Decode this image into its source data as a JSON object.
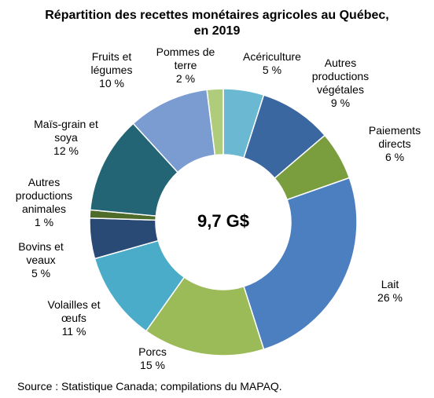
{
  "chart_data": {
    "type": "pie",
    "title_lines": [
      "Répartition des recettes monétaires agricoles au Québec,",
      "en 2019"
    ],
    "center_label": "9,7 G$",
    "source": "Source : Statistique Canada; compilations du MAPAQ.",
    "slices": [
      {
        "name_lines": [
          "Acériculture"
        ],
        "pct_label": "5 %",
        "value": 5,
        "color": "#6BB8D2"
      },
      {
        "name_lines": [
          "Autres",
          "productions",
          "végétales"
        ],
        "pct_label": "9 %",
        "value": 9,
        "color": "#3A67A0"
      },
      {
        "name_lines": [
          "Paiements",
          "directs"
        ],
        "pct_label": "6 %",
        "value": 6,
        "color": "#7A9D3E"
      },
      {
        "name_lines": [
          "Lait"
        ],
        "pct_label": "26 %",
        "value": 26,
        "color": "#4B7FC0"
      },
      {
        "name_lines": [
          "Porcs"
        ],
        "pct_label": "15 %",
        "value": 15,
        "color": "#9BBB59"
      },
      {
        "name_lines": [
          "Volailles et",
          "œufs"
        ],
        "pct_label": "11 %",
        "value": 11,
        "color": "#4AACC8"
      },
      {
        "name_lines": [
          "Bovins et",
          "veaux"
        ],
        "pct_label": "5 %",
        "value": 5,
        "color": "#2A4A76"
      },
      {
        "name_lines": [
          "Autres",
          "productions",
          "animales"
        ],
        "pct_label": "1 %",
        "value": 1,
        "color": "#4E6B2A"
      },
      {
        "name_lines": [
          "Maïs-grain et",
          "soya"
        ],
        "pct_label": "12 %",
        "value": 12,
        "color": "#236574"
      },
      {
        "name_lines": [
          "Fruits et",
          "légumes"
        ],
        "pct_label": "10 %",
        "value": 10,
        "color": "#7A9CD0"
      },
      {
        "name_lines": [
          "Pommes de",
          "terre"
        ],
        "pct_label": "2 %",
        "value": 2,
        "color": "#AFCB7C"
      }
    ]
  }
}
